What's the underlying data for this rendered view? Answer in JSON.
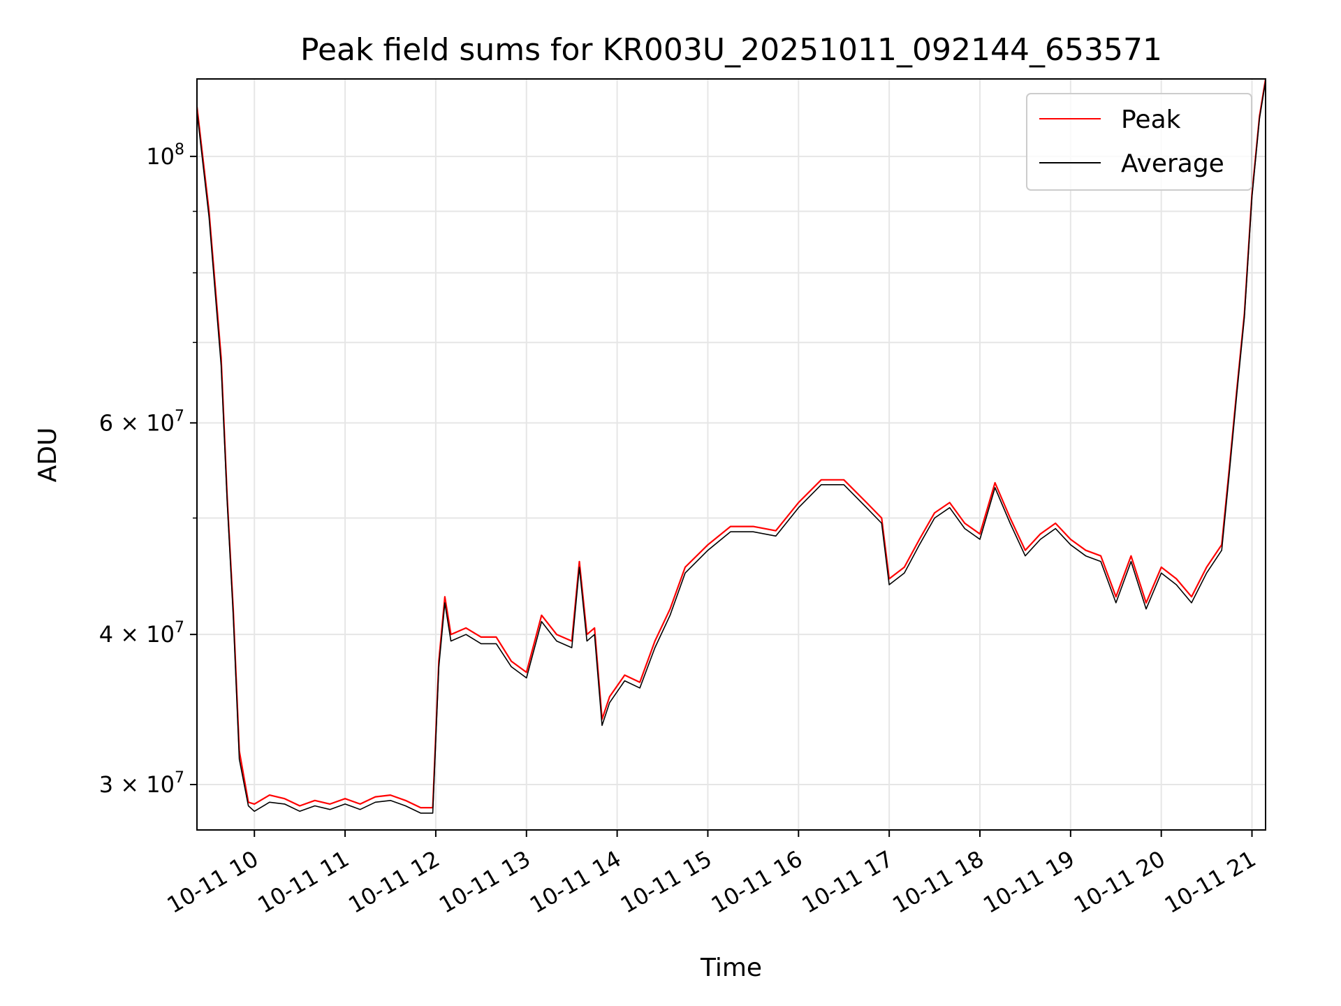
{
  "chart_data": {
    "type": "line",
    "title": "Peak field sums for KR003U_20251011_092144_653571",
    "xlabel": "Time",
    "ylabel": "ADU",
    "y_scale": "log",
    "ylim": [
      27500000,
      116000000
    ],
    "xlim": [
      "10-11 09:22",
      "10-11 21:09"
    ],
    "grid": true,
    "legend_position": "top-right",
    "x_ticks": [
      "10-11 10",
      "10-11 11",
      "10-11 12",
      "10-11 13",
      "10-11 14",
      "10-11 15",
      "10-11 16",
      "10-11 17",
      "10-11 18",
      "10-11 19",
      "10-11 20",
      "10-11 21"
    ],
    "y_ticks": [
      {
        "value": 100000000,
        "base": "10",
        "exp": "8"
      },
      {
        "value": 60000000,
        "base": "6 × 10",
        "exp": "7"
      },
      {
        "value": 40000000,
        "base": "4 × 10",
        "exp": "7"
      },
      {
        "value": 30000000,
        "base": "3 × 10",
        "exp": "7"
      }
    ],
    "x": [
      "10-11 09:22",
      "10-11 09:30",
      "10-11 09:38",
      "10-11 09:42",
      "10-11 09:46",
      "10-11 09:50",
      "10-11 09:56",
      "10-11 10:00",
      "10-11 10:10",
      "10-11 10:20",
      "10-11 10:30",
      "10-11 10:40",
      "10-11 10:50",
      "10-11 11:00",
      "10-11 11:10",
      "10-11 11:20",
      "10-11 11:30",
      "10-11 11:40",
      "10-11 11:50",
      "10-11 11:58",
      "10-11 12:02",
      "10-11 12:06",
      "10-11 12:10",
      "10-11 12:20",
      "10-11 12:30",
      "10-11 12:40",
      "10-11 12:50",
      "10-11 13:00",
      "10-11 13:10",
      "10-11 13:20",
      "10-11 13:30",
      "10-11 13:35",
      "10-11 13:40",
      "10-11 13:45",
      "10-11 13:50",
      "10-11 13:55",
      "10-11 14:05",
      "10-11 14:15",
      "10-11 14:25",
      "10-11 14:35",
      "10-11 14:45",
      "10-11 15:00",
      "10-11 15:15",
      "10-11 15:30",
      "10-11 15:45",
      "10-11 16:00",
      "10-11 16:15",
      "10-11 16:30",
      "10-11 16:45",
      "10-11 16:55",
      "10-11 17:00",
      "10-11 17:10",
      "10-11 17:20",
      "10-11 17:30",
      "10-11 17:40",
      "10-11 17:50",
      "10-11 18:00",
      "10-11 18:10",
      "10-11 18:20",
      "10-11 18:30",
      "10-11 18:40",
      "10-11 18:50",
      "10-11 19:00",
      "10-11 19:10",
      "10-11 19:20",
      "10-11 19:30",
      "10-11 19:40",
      "10-11 19:50",
      "10-11 20:00",
      "10-11 20:10",
      "10-11 20:20",
      "10-11 20:30",
      "10-11 20:40",
      "10-11 20:45",
      "10-11 20:50",
      "10-11 20:55",
      "10-11 21:00",
      "10-11 21:05",
      "10-11 21:09"
    ],
    "series": [
      {
        "name": "Peak",
        "color": "#ff0000",
        "values": [
          110000000,
          90000000,
          68000000,
          52000000,
          42000000,
          32000000,
          29000000,
          28900000,
          29400000,
          29200000,
          28800000,
          29100000,
          28900000,
          29200000,
          28900000,
          29300000,
          29400000,
          29100000,
          28700000,
          28700000,
          38000000,
          43000000,
          40000000,
          40500000,
          39800000,
          39800000,
          38000000,
          37200000,
          41500000,
          40000000,
          39500000,
          46000000,
          40000000,
          40500000,
          34000000,
          35500000,
          37000000,
          36500000,
          39500000,
          42000000,
          45500000,
          47500000,
          49200000,
          49200000,
          48800000,
          51500000,
          53800000,
          53800000,
          51500000,
          50000000,
          44500000,
          45500000,
          48000000,
          50500000,
          51500000,
          49500000,
          48500000,
          53500000,
          50000000,
          47000000,
          48500000,
          49500000,
          48000000,
          47000000,
          46500000,
          43000000,
          46500000,
          42500000,
          45500000,
          44500000,
          43000000,
          45500000,
          47500000,
          55000000,
          64000000,
          74000000,
          93000000,
          108000000,
          116000000
        ]
      },
      {
        "name": "Average",
        "color": "#000000",
        "values": [
          109000000,
          89000000,
          67000000,
          51500000,
          41500000,
          31500000,
          28800000,
          28500000,
          29000000,
          28900000,
          28500000,
          28800000,
          28600000,
          28900000,
          28600000,
          29000000,
          29100000,
          28800000,
          28400000,
          28400000,
          37600000,
          42500000,
          39500000,
          40000000,
          39300000,
          39300000,
          37600000,
          36800000,
          41000000,
          39500000,
          39000000,
          45500000,
          39500000,
          40000000,
          33600000,
          35100000,
          36600000,
          36100000,
          39000000,
          41500000,
          45000000,
          47000000,
          48700000,
          48700000,
          48300000,
          51000000,
          53300000,
          53300000,
          51000000,
          49500000,
          44000000,
          45000000,
          47500000,
          50000000,
          51000000,
          49000000,
          48000000,
          53000000,
          49500000,
          46500000,
          48000000,
          49000000,
          47500000,
          46500000,
          46000000,
          42500000,
          46000000,
          42000000,
          45000000,
          44000000,
          42500000,
          45000000,
          47000000,
          54500000,
          63500000,
          73500000,
          92500000,
          107500000,
          115500000
        ]
      }
    ]
  }
}
